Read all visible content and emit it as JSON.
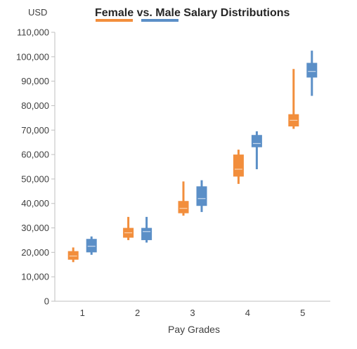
{
  "chart_data": {
    "type": "box",
    "title": "Female vs. Male Salary Distributions",
    "y_unit_label": "USD",
    "xlabel": "Pay Grades",
    "ylabel": "",
    "categories": [
      "1",
      "2",
      "3",
      "4",
      "5"
    ],
    "ylim": [
      0,
      110000
    ],
    "ytick_step": 10000,
    "ytick_labels": [
      "0",
      "10,000",
      "20,000",
      "30,000",
      "40,000",
      "50,000",
      "60,000",
      "70,000",
      "80,000",
      "90,000",
      "100,000",
      "110,000"
    ],
    "legend_position": "top, flanking title",
    "grid": false,
    "series": [
      {
        "key": "female",
        "color": "#F28E3C",
        "median_color": "#FAD3B0",
        "boxes": [
          {
            "min": 16000,
            "q1": 17000,
            "median": 18500,
            "q3": 20500,
            "max": 22000
          },
          {
            "min": 25000,
            "q1": 26000,
            "median": 28000,
            "q3": 30000,
            "max": 34500
          },
          {
            "min": 35000,
            "q1": 36000,
            "median": 38000,
            "q3": 41000,
            "max": 49000
          },
          {
            "min": 48000,
            "q1": 51000,
            "median": 54000,
            "q3": 60000,
            "max": 62000
          },
          {
            "min": 70500,
            "q1": 71500,
            "median": 74000,
            "q3": 76500,
            "max": 95000
          }
        ]
      },
      {
        "key": "male",
        "color": "#5B8FC7",
        "median_color": "#C9DAEE",
        "boxes": [
          {
            "min": 19000,
            "q1": 20000,
            "median": 22500,
            "q3": 25500,
            "max": 26500
          },
          {
            "min": 24000,
            "q1": 25000,
            "median": 28500,
            "q3": 30000,
            "max": 34500
          },
          {
            "min": 36500,
            "q1": 39000,
            "median": 42000,
            "q3": 47000,
            "max": 49500
          },
          {
            "min": 54000,
            "q1": 63000,
            "median": 64500,
            "q3": 68000,
            "max": 69500
          },
          {
            "min": 84000,
            "q1": 91500,
            "median": 94000,
            "q3": 97500,
            "max": 102500
          }
        ]
      }
    ]
  }
}
